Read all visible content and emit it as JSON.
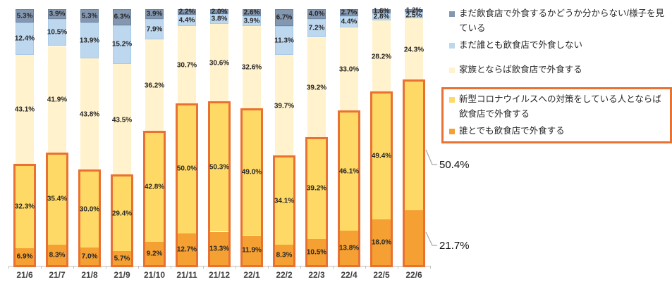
{
  "chart_data": {
    "type": "bar",
    "stacked": true,
    "unit": "%",
    "ylim": [
      0,
      100
    ],
    "grid": false,
    "legend_position": "right",
    "categories": [
      "21/6",
      "21/7",
      "21/8",
      "21/9",
      "21/10",
      "21/11",
      "21/12",
      "22/1",
      "22/2",
      "22/3",
      "22/4",
      "22/5",
      "22/6"
    ],
    "series": [
      {
        "name": "まだ飲食店で外食するかどうか分からない/様子を見ている",
        "color": "#8497B0",
        "border": "#70849E",
        "values": [
          5.3,
          3.9,
          5.3,
          6.3,
          3.9,
          2.2,
          2.0,
          2.6,
          6.7,
          4.0,
          2.7,
          1.6,
          1.2
        ]
      },
      {
        "name": "まだ誰とも飲食店で外食しない",
        "color": "#BDD7EE",
        "border": "#A8CBE8",
        "values": [
          12.4,
          10.5,
          13.9,
          15.2,
          7.9,
          4.4,
          3.8,
          3.9,
          11.3,
          7.2,
          4.4,
          2.8,
          2.5
        ]
      },
      {
        "name": "家族とならば飲食店で外食する",
        "color": "#FFF2CC",
        "border": "",
        "values": [
          43.1,
          41.9,
          43.8,
          43.5,
          36.2,
          30.7,
          30.6,
          32.6,
          39.7,
          39.2,
          33.0,
          28.2,
          24.3
        ]
      },
      {
        "name": "新型コロナウイルスへの対策をしている人とならば飲食店で外食する",
        "color": "#FFD966",
        "border": "",
        "values": [
          32.3,
          35.4,
          30.0,
          29.4,
          42.8,
          50.0,
          50.3,
          49.0,
          34.1,
          39.2,
          46.1,
          49.4,
          50.4
        ]
      },
      {
        "name": "誰とでも飲食店で外食する",
        "color": "#F5A033",
        "border": "",
        "values": [
          6.9,
          8.3,
          7.0,
          5.7,
          9.2,
          12.7,
          13.3,
          11.9,
          8.3,
          10.5,
          13.8,
          18.0,
          21.7
        ]
      }
    ],
    "highlight": {
      "series": [
        3,
        4
      ],
      "border_color": "#E97132"
    },
    "callouts": [
      {
        "series": 3,
        "category": 12,
        "label": "50.4%"
      },
      {
        "series": 4,
        "category": 12,
        "label": "21.7%"
      }
    ],
    "label_format": "one_decimal_percent"
  },
  "legend": {
    "highlight_border_color": "#E97132"
  }
}
